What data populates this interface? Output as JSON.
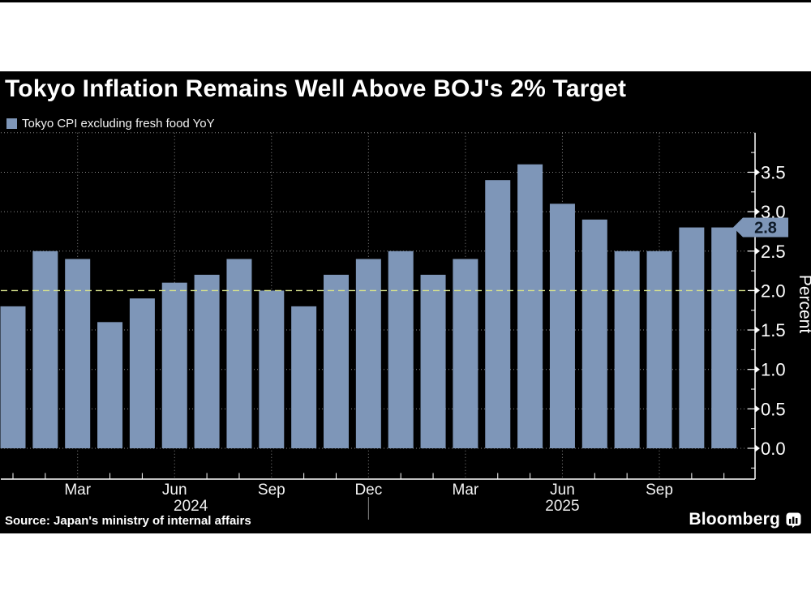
{
  "header": {
    "title": "Tokyo Inflation Remains Well Above BOJ's 2% Target"
  },
  "chart_data": {
    "type": "bar",
    "title": "Tokyo Inflation Remains Well Above BOJ's 2% Target",
    "legend": "Tokyo CPI excluding fresh food YoY",
    "ylabel": "Percent",
    "x": [
      "Jan 2024",
      "Feb 2024",
      "Mar 2024",
      "Apr 2024",
      "May 2024",
      "Jun 2024",
      "Jul 2024",
      "Aug 2024",
      "Sep 2024",
      "Oct 2024",
      "Nov 2024",
      "Dec 2024",
      "Jan 2025",
      "Feb 2025",
      "Mar 2025",
      "Apr 2025",
      "May 2025",
      "Jun 2025",
      "Jul 2025",
      "Aug 2025",
      "Sep 2025",
      "Oct 2025",
      "Nov 2025"
    ],
    "values": [
      1.8,
      2.5,
      2.4,
      1.6,
      1.9,
      2.1,
      2.2,
      2.4,
      2.0,
      1.8,
      2.2,
      2.4,
      2.5,
      2.2,
      2.4,
      3.4,
      3.6,
      3.1,
      2.9,
      2.5,
      2.5,
      2.8,
      2.8
    ],
    "ylim": [
      -0.4,
      4.0
    ],
    "yticks": [
      0.0,
      0.5,
      1.0,
      1.5,
      2.0,
      2.5,
      3.0,
      3.5
    ],
    "ytick_labels": [
      "0.0",
      "0.5",
      "1.0",
      "1.5",
      "2.0",
      "2.5",
      "3.0",
      "3.5"
    ],
    "grid": true,
    "legend_position": "top-left",
    "axis_side": "right",
    "target_line": {
      "value": 2.0
    },
    "latest_annotation": {
      "value": 2.8,
      "label": "2.8"
    },
    "xtick_quarters": [
      {
        "index": 2,
        "label": "Mar"
      },
      {
        "index": 5,
        "label": "Jun"
      },
      {
        "index": 8,
        "label": "Sep"
      },
      {
        "index": 11,
        "label": "Dec"
      },
      {
        "index": 14,
        "label": "Mar"
      },
      {
        "index": 17,
        "label": "Jun"
      },
      {
        "index": 20,
        "label": "Sep"
      }
    ],
    "year_labels": [
      {
        "text": "2024",
        "start_index": 0,
        "end_index": 11
      },
      {
        "text": "2025",
        "start_index": 12,
        "end_index": 22
      }
    ],
    "year_divider_index": 11
  },
  "footer": {
    "source": "Source: Japan's ministry of internal affairs",
    "brand": "Bloomberg"
  },
  "colors": {
    "page_bg": "#ffffff",
    "card_bg": "#000000",
    "bar": "#7e96b8",
    "target_line": "#d7e28c",
    "axis": "#ffffff",
    "grid": "#aaaaaa",
    "tag_bg": "#7e96b8",
    "tag_text": "#0e1a28",
    "text": "#ffffff"
  }
}
